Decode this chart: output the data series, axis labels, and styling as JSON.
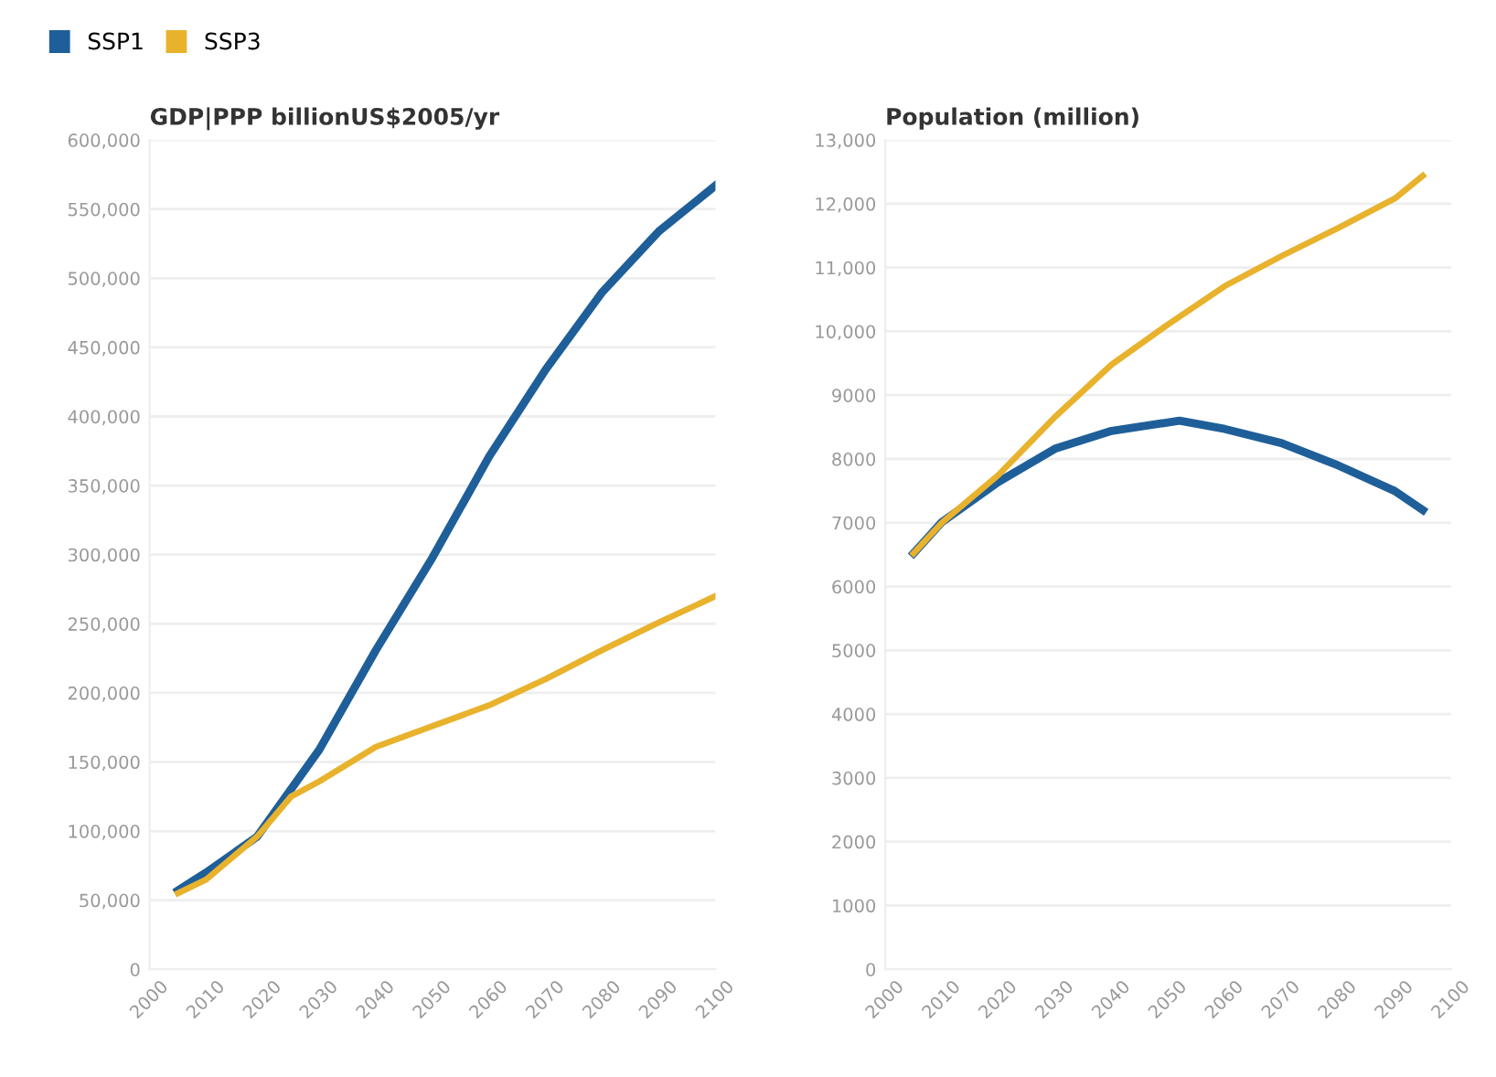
{
  "chart_data": [
    {
      "type": "line",
      "title": "GDP|PPP billionUS$2005/yr",
      "legend": "top",
      "grid": "y",
      "x": [
        2005,
        2010,
        2019,
        2030,
        2040,
        2050,
        2060,
        2070,
        2080,
        2090,
        2100
      ],
      "series": [
        {
          "name": "SSP1",
          "color": "#1f5f99",
          "values": [
            57000,
            70000,
            96000,
            159000,
            231000,
            298000,
            371000,
            434000,
            490000,
            534000,
            567000
          ]
        },
        {
          "name": "SSP3",
          "color": "#e8b22d",
          "x": [
            2005,
            2010,
            2019,
            2025,
            2030,
            2040,
            2050,
            2060,
            2070,
            2080,
            2090,
            2100
          ],
          "values": [
            55000,
            65000,
            96000,
            125000,
            136000,
            161000,
            176000,
            191000,
            210000,
            231000,
            251000,
            270000
          ]
        }
      ],
      "xlim": [
        2000,
        2100
      ],
      "xticks": [
        2000,
        2010,
        2020,
        2030,
        2040,
        2050,
        2060,
        2070,
        2080,
        2090,
        2100
      ],
      "ylim": [
        0,
        600000
      ],
      "yticks": [
        0,
        {
          "value": 50000,
          "label": "50,000"
        },
        {
          "value": 100000,
          "label": "100,000"
        },
        {
          "value": 150000,
          "label": "150,000"
        },
        {
          "value": 200000,
          "label": "200,000"
        },
        {
          "value": 250000,
          "label": "250,000"
        },
        {
          "value": 300000,
          "label": "300,000"
        },
        {
          "value": 350000,
          "label": "350,000"
        },
        {
          "value": 400000,
          "label": "400,000"
        },
        {
          "value": 450000,
          "label": "450,000"
        },
        {
          "value": 500000,
          "label": "500,000"
        },
        {
          "value": 550000,
          "label": "550,000"
        },
        {
          "value": 600000,
          "label": "600,000"
        }
      ]
    },
    {
      "type": "line",
      "title": "Population (million)",
      "grid": "y",
      "x": [
        2005,
        2010,
        2020,
        2030,
        2040,
        2052,
        2060,
        2070,
        2080,
        2090,
        2095
      ],
      "series": [
        {
          "color": "#1f5f99",
          "values": [
            6520,
            7010,
            7640,
            8160,
            8440,
            8600,
            8470,
            8250,
            7900,
            7500,
            7200
          ]
        },
        {
          "color": "#e8b22d",
          "x": [
            2005,
            2010,
            2020,
            2030,
            2040,
            2050,
            2060,
            2070,
            2080,
            2090,
            2095
          ],
          "values": [
            6520,
            7000,
            7750,
            8660,
            9480,
            10110,
            10710,
            11180,
            11620,
            12080,
            12440
          ]
        }
      ],
      "xlim": [
        2000,
        2100
      ],
      "xticks": [
        2000,
        2010,
        2020,
        2030,
        2040,
        2050,
        2060,
        2070,
        2080,
        2090,
        2100
      ],
      "ylim": [
        0,
        13000
      ],
      "yticks": [
        0,
        1000,
        2000,
        3000,
        4000,
        5000,
        6000,
        7000,
        8000,
        9000,
        {
          "value": 10000,
          "label": "10,000"
        },
        {
          "value": 11000,
          "label": "11,000"
        },
        {
          "value": 12000,
          "label": "12,000"
        },
        {
          "value": 13000,
          "label": "13,000"
        }
      ]
    }
  ]
}
